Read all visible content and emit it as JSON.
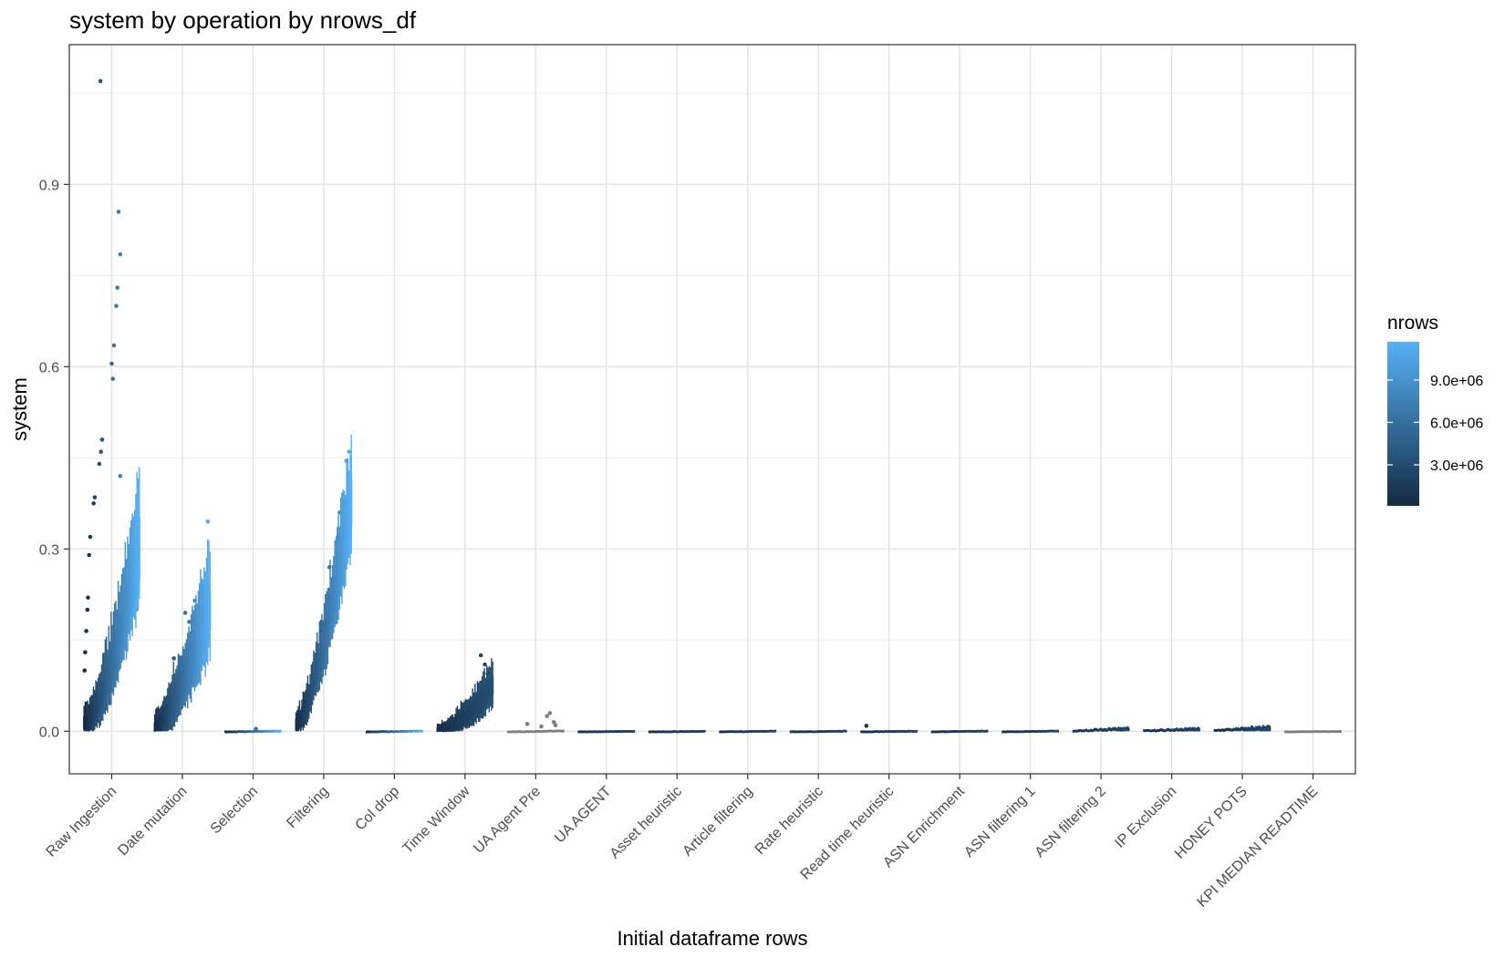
{
  "chart_data": {
    "type": "boxplot",
    "title": "system by operation by nrows_df",
    "xlabel": "Initial dataframe rows",
    "ylabel": "system",
    "ylim": [
      -0.07,
      1.13
    ],
    "y_ticks": [
      0.0,
      0.3,
      0.6,
      0.9
    ],
    "y_tick_labels": [
      "0.0",
      "0.3",
      "0.6",
      "0.9"
    ],
    "grid": true,
    "legend": {
      "title": "nrows",
      "type": "colorbar",
      "placement": "right",
      "range": [
        100000,
        11700000
      ],
      "ticks": [
        3000000,
        6000000,
        9000000
      ],
      "tick_labels": [
        "3.0e+06",
        "6.0e+06",
        "9.0e+06"
      ],
      "low_color": "#132B43",
      "high_color": "#56B1F7",
      "na_color": "#7f7f7f"
    },
    "categories": [
      "Raw Ingestion",
      "Date mutation",
      "Selection",
      "Filtering",
      "Col drop",
      "Time Window",
      "UA Agent Pre",
      "UA AGENT",
      "Asset heuristic",
      "Article filtering",
      "Rate heuristic",
      "Read time heuristic",
      "ASN Enrichment",
      "ASN filtering 1",
      "ASN filtering 2",
      "IP Exclusion",
      "HONEY POTS",
      "KPI MEDIAN READTIME"
    ],
    "series": [
      {
        "category": "Raw Ingestion",
        "color_mode": "gradient",
        "median_min": 0.01,
        "median_max": 0.3,
        "spread": 0.08,
        "curve": 1.6,
        "jitter": 0.012,
        "outliers": [
          [
            0.3,
            1.07
          ],
          [
            0.62,
            0.855
          ],
          [
            0.65,
            0.785
          ],
          [
            0.6,
            0.73
          ],
          [
            0.58,
            0.7
          ],
          [
            0.54,
            0.635
          ],
          [
            0.5,
            0.605
          ],
          [
            0.52,
            0.58
          ],
          [
            0.33,
            0.48
          ],
          [
            0.31,
            0.46
          ],
          [
            0.28,
            0.44
          ],
          [
            0.2,
            0.385
          ],
          [
            0.18,
            0.375
          ],
          [
            0.12,
            0.32
          ],
          [
            0.1,
            0.29
          ],
          [
            0.08,
            0.22
          ],
          [
            0.07,
            0.2
          ],
          [
            0.05,
            0.165
          ],
          [
            0.03,
            0.13
          ],
          [
            0.02,
            0.1
          ],
          [
            0.65,
            0.42
          ]
        ]
      },
      {
        "category": "Date mutation",
        "color_mode": "gradient",
        "median_min": 0.005,
        "median_max": 0.2,
        "spread": 0.07,
        "curve": 1.5,
        "jitter": 0.01,
        "outliers": [
          [
            0.55,
            0.195
          ],
          [
            0.62,
            0.18
          ],
          [
            0.95,
            0.345
          ],
          [
            0.35,
            0.12
          ],
          [
            0.72,
            0.215
          ]
        ]
      },
      {
        "category": "Selection",
        "color_mode": "gradient",
        "median_min": 0.0,
        "median_max": 0.0008,
        "spread": 0.0008,
        "curve": 1.0,
        "jitter": 0.0008,
        "outliers": [
          [
            0.55,
            0.004
          ]
        ]
      },
      {
        "category": "Filtering",
        "color_mode": "gradient",
        "median_min": 0.01,
        "median_max": 0.37,
        "spread": 0.07,
        "curve": 1.5,
        "jitter": 0.012,
        "outliers": [
          [
            0.95,
            0.46
          ],
          [
            0.9,
            0.445
          ],
          [
            0.85,
            0.375
          ],
          [
            0.78,
            0.36
          ],
          [
            0.75,
            0.32
          ],
          [
            0.7,
            0.21
          ],
          [
            0.6,
            0.27
          ],
          [
            0.45,
            0.175
          ],
          [
            0.45,
            0.165
          ],
          [
            0.3,
            0.08
          ],
          [
            0.2,
            0.06
          ],
          [
            0.15,
            0.04
          ],
          [
            0.1,
            0.03
          ]
        ]
      },
      {
        "category": "Col drop",
        "color_mode": "gradient",
        "median_min": 0.0,
        "median_max": 0.0008,
        "spread": 0.0008,
        "curve": 1.0,
        "jitter": 0.0008,
        "outliers": []
      },
      {
        "category": "Time Window",
        "color_mode": "gradient_dark",
        "median_min": 0.0,
        "median_max": 0.07,
        "spread": 0.03,
        "curve": 1.8,
        "jitter": 0.006,
        "outliers": [
          [
            0.78,
            0.125
          ],
          [
            0.85,
            0.11
          ],
          [
            0.9,
            0.095
          ],
          [
            0.1,
            0.01
          ],
          [
            0.3,
            0.02
          ]
        ]
      },
      {
        "category": "UA Agent Pre",
        "color_mode": "na",
        "median_min": 0.0,
        "median_max": 0.001,
        "spread": 0.001,
        "curve": 1.0,
        "jitter": 0.001,
        "outliers": [
          [
            0.75,
            0.03
          ],
          [
            0.7,
            0.025
          ],
          [
            0.82,
            0.015
          ],
          [
            0.85,
            0.01
          ],
          [
            0.35,
            0.012
          ],
          [
            0.6,
            0.008
          ]
        ]
      },
      {
        "category": "UA AGENT",
        "color_mode": "dark",
        "median_min": 0.0,
        "median_max": 0.0005,
        "spread": 0.0008,
        "curve": 1.0,
        "jitter": 0.0005,
        "outliers": []
      },
      {
        "category": "Asset heuristic",
        "color_mode": "dark",
        "median_min": 0.0,
        "median_max": 0.0005,
        "spread": 0.0008,
        "curve": 1.0,
        "jitter": 0.0005,
        "outliers": []
      },
      {
        "category": "Article filtering",
        "color_mode": "dark",
        "median_min": 0.0,
        "median_max": 0.0006,
        "spread": 0.001,
        "curve": 1.0,
        "jitter": 0.0006,
        "outliers": []
      },
      {
        "category": "Rate heuristic",
        "color_mode": "dark",
        "median_min": 0.0,
        "median_max": 0.0006,
        "spread": 0.001,
        "curve": 1.0,
        "jitter": 0.0006,
        "outliers": []
      },
      {
        "category": "Read time heuristic",
        "color_mode": "dark",
        "median_min": 0.0,
        "median_max": 0.0006,
        "spread": 0.001,
        "curve": 1.0,
        "jitter": 0.0006,
        "outliers": [
          [
            0.1,
            0.009
          ]
        ]
      },
      {
        "category": "ASN Enrichment",
        "color_mode": "dark",
        "median_min": 0.0,
        "median_max": 0.0008,
        "spread": 0.001,
        "curve": 1.0,
        "jitter": 0.0006,
        "outliers": []
      },
      {
        "category": "ASN filtering 1",
        "color_mode": "dark",
        "median_min": 0.0,
        "median_max": 0.0008,
        "spread": 0.001,
        "curve": 1.0,
        "jitter": 0.0006,
        "outliers": []
      },
      {
        "category": "ASN filtering 2",
        "color_mode": "dark",
        "median_min": 0.001,
        "median_max": 0.003,
        "spread": 0.003,
        "curve": 1.0,
        "jitter": 0.002,
        "outliers": []
      },
      {
        "category": "IP Exclusion",
        "color_mode": "dark",
        "median_min": 0.001,
        "median_max": 0.003,
        "spread": 0.003,
        "curve": 1.0,
        "jitter": 0.002,
        "outliers": []
      },
      {
        "category": "HONEY POTS",
        "color_mode": "dark",
        "median_min": 0.002,
        "median_max": 0.004,
        "spread": 0.004,
        "curve": 1.0,
        "jitter": 0.002,
        "outliers": []
      },
      {
        "category": "KPI MEDIAN READTIME",
        "color_mode": "na",
        "median_min": 0.0,
        "median_max": 0.0005,
        "spread": 0.0006,
        "curve": 1.0,
        "jitter": 0.0005,
        "outliers": []
      }
    ]
  }
}
